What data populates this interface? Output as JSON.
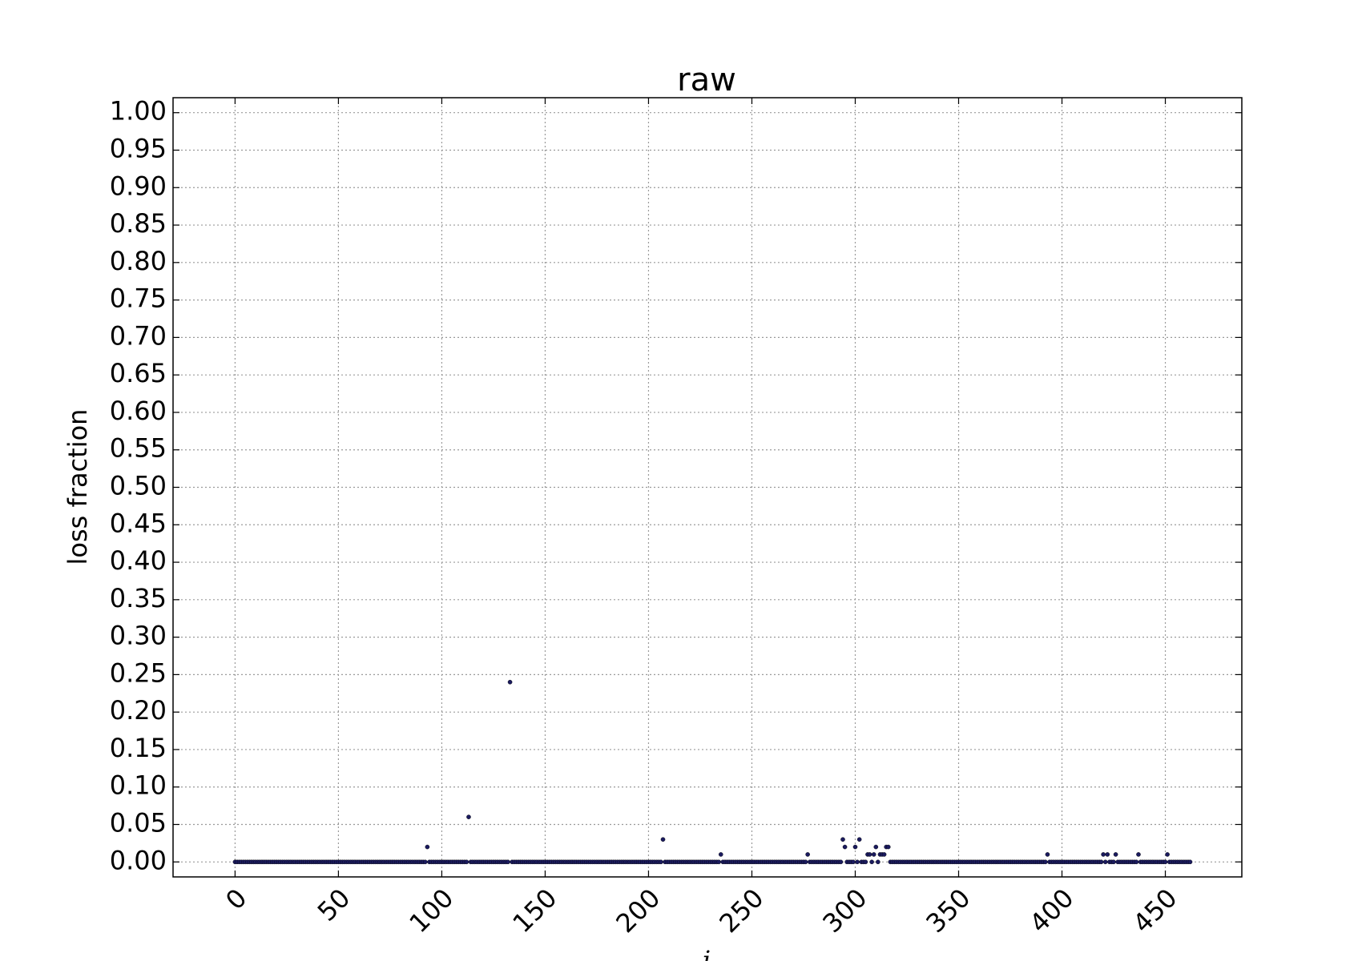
{
  "chart_data": {
    "type": "scatter",
    "title": "raw",
    "xlabel": "i",
    "ylabel": "loss fraction",
    "xlim": [
      -30,
      487
    ],
    "ylim": [
      -0.02,
      1.02
    ],
    "x_ticks": [
      0,
      50,
      100,
      150,
      200,
      250,
      300,
      350,
      400,
      450
    ],
    "x_tick_labels": [
      "0",
      "50",
      "100",
      "150",
      "200",
      "250",
      "300",
      "350",
      "400",
      "450"
    ],
    "y_ticks": [
      0,
      0.05,
      0.1,
      0.15,
      0.2,
      0.25,
      0.3,
      0.35,
      0.4,
      0.45,
      0.5,
      0.55,
      0.6,
      0.65,
      0.7,
      0.75,
      0.8,
      0.85,
      0.9,
      0.95,
      1.0
    ],
    "y_tick_labels": [
      "0.00",
      "0.05",
      "0.10",
      "0.15",
      "0.20",
      "0.25",
      "0.30",
      "0.35",
      "0.40",
      "0.45",
      "0.50",
      "0.55",
      "0.60",
      "0.65",
      "0.70",
      "0.75",
      "0.80",
      "0.85",
      "0.90",
      "0.95",
      "1.00"
    ],
    "grid": true,
    "marker_color": "#1a1a5e",
    "x_range": [
      0,
      462
    ],
    "default_y": 0,
    "nonzero_points": [
      {
        "x": 93,
        "y": 0.02
      },
      {
        "x": 113,
        "y": 0.06
      },
      {
        "x": 133,
        "y": 0.24
      },
      {
        "x": 207,
        "y": 0.03
      },
      {
        "x": 235,
        "y": 0.01
      },
      {
        "x": 277,
        "y": 0.01
      },
      {
        "x": 294,
        "y": 0.03
      },
      {
        "x": 295,
        "y": 0.02
      },
      {
        "x": 300,
        "y": 0.02
      },
      {
        "x": 302,
        "y": 0.03
      },
      {
        "x": 306,
        "y": 0.01
      },
      {
        "x": 307,
        "y": 0.01
      },
      {
        "x": 309,
        "y": 0.01
      },
      {
        "x": 310,
        "y": 0.02
      },
      {
        "x": 312,
        "y": 0.01
      },
      {
        "x": 313,
        "y": 0.01
      },
      {
        "x": 314,
        "y": 0.01
      },
      {
        "x": 315,
        "y": 0.02
      },
      {
        "x": 316,
        "y": 0.02
      },
      {
        "x": 393,
        "y": 0.01
      },
      {
        "x": 420,
        "y": 0.01
      },
      {
        "x": 422,
        "y": 0.01
      },
      {
        "x": 426,
        "y": 0.01
      },
      {
        "x": 437,
        "y": 0.01
      },
      {
        "x": 451,
        "y": 0.01
      }
    ]
  }
}
